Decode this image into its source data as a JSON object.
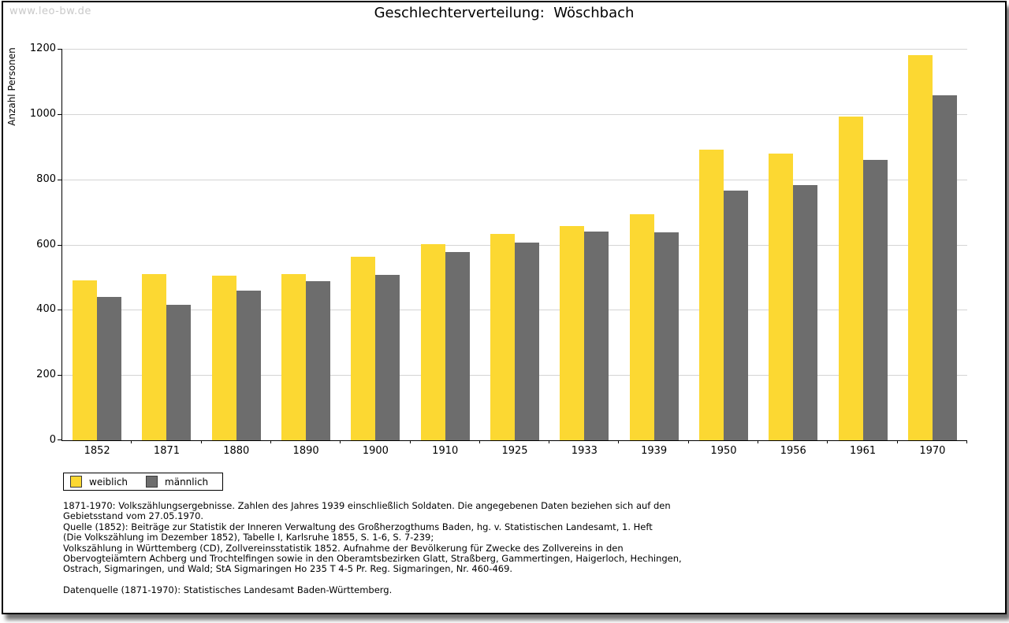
{
  "watermark": "www.leo-bw.de",
  "title": "Geschlechterverteilung:  Wöschbach",
  "chart_data": {
    "type": "bar",
    "title": "Geschlechterverteilung: Wöschbach",
    "xlabel": "",
    "ylabel": "Anzahl Personen",
    "ylim": [
      0,
      1200
    ],
    "ytick_interval": 200,
    "grid": true,
    "legend_position": "bottom-left",
    "categories": [
      "1852",
      "1871",
      "1880",
      "1890",
      "1900",
      "1910",
      "1925",
      "1933",
      "1939",
      "1950",
      "1956",
      "1961",
      "1970"
    ],
    "series": [
      {
        "name": "weiblich",
        "color": "#fcd832",
        "values": [
          490,
          510,
          505,
          510,
          563,
          602,
          633,
          657,
          693,
          890,
          880,
          992,
          1180
        ]
      },
      {
        "name": "männlich",
        "color": "#6d6d6d",
        "values": [
          440,
          415,
          458,
          487,
          507,
          577,
          606,
          639,
          637,
          765,
          783,
          860,
          1058
        ]
      }
    ]
  },
  "colors": {
    "weiblich": "#fcd832",
    "maennlich": "#6d6d6d",
    "gridline": "#d4d4d4",
    "watermark": "#c9c9c9"
  },
  "footnotes": {
    "lines": [
      "1871-1970: Volkszählungsergebnisse. Zahlen des Jahres 1939 einschließlich Soldaten. Die angegebenen Daten beziehen sich auf den",
      "Gebietsstand vom 27.05.1970.",
      "Quelle (1852): Beiträge zur Statistik der Inneren Verwaltung des Großherzogthums Baden, hg. v. Statistischen Landesamt, 1. Heft",
      "(Die Volkszählung im Dezember 1852), Tabelle I, Karlsruhe 1855, S. 1-6, S. 7-239;",
      "Volkszählung in Württemberg (CD), Zollvereinsstatistik 1852. Aufnahme der Bevölkerung für Zwecke des Zollvereins in den",
      "Obervogteiämtern Achberg und Trochtelfingen sowie in den Oberamtsbezirken Glatt, Straßberg, Gammertingen, Haigerloch, Hechingen,",
      "Ostrach, Sigmaringen, und Wald; StA Sigmaringen Ho 235 T 4-5 Pr. Reg. Sigmaringen, Nr. 460-469.",
      "",
      "Datenquelle (1871-1970): Statistisches Landesamt Baden-Württemberg."
    ]
  }
}
